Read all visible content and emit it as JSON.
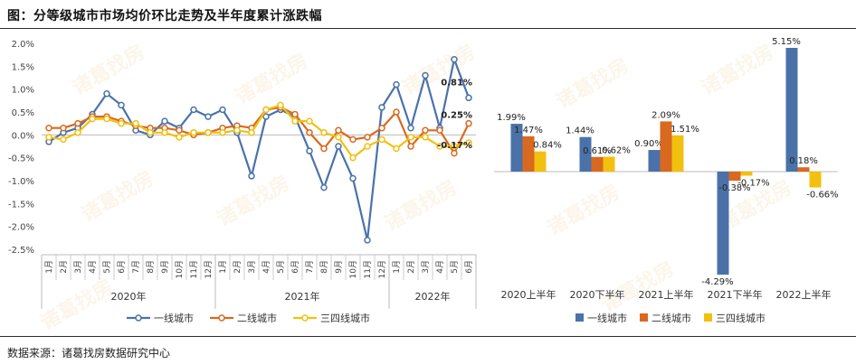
{
  "header": {
    "title": "图：分等级城市市场均价环比走势及半年度累计涨跌幅"
  },
  "footer": {
    "source": "数据来源：诸葛找房数据研究中心"
  },
  "watermark": {
    "text": "诸葛找房"
  },
  "colors": {
    "tier1": "#4a72a9",
    "tier2": "#d9691e",
    "tier34": "#f2c00f",
    "axis": "#999999"
  },
  "chart_data": [
    {
      "type": "line",
      "y_axis": {
        "ticks": [
          "2.0%",
          "1.5%",
          "1.0%",
          "0.5%",
          "0.0%",
          "-0.5%",
          "-1.0%",
          "-1.5%",
          "-2.0%",
          "-2.5%"
        ],
        "ylim": [
          -2.5,
          2.0
        ]
      },
      "x_months": [
        "1月",
        "2月",
        "3月",
        "4月",
        "5月",
        "6月",
        "7月",
        "8月",
        "9月",
        "10月",
        "11月",
        "12月",
        "1月",
        "2月",
        "3月",
        "4月",
        "5月",
        "6月",
        "7月",
        "8月",
        "9月",
        "10月",
        "11月",
        "12月",
        "1月",
        "2月",
        "3月",
        "4月",
        "5月",
        "6月"
      ],
      "year_groups": [
        {
          "label": "2020年",
          "count": 12
        },
        {
          "label": "2021年",
          "count": 12
        },
        {
          "label": "2022年",
          "count": 6
        }
      ],
      "series": [
        {
          "name": "一线城市",
          "color_key": "tier1",
          "values": [
            -0.15,
            0.05,
            0.15,
            0.45,
            0.9,
            0.65,
            0.1,
            0.0,
            0.3,
            0.15,
            0.55,
            0.4,
            0.55,
            0.05,
            -0.9,
            0.4,
            0.55,
            0.4,
            -0.35,
            -1.15,
            -0.25,
            -0.95,
            -2.3,
            0.6,
            1.1,
            0.15,
            1.3,
            0.15,
            1.65,
            0.81
          ]
        },
        {
          "name": "二线城市",
          "color_key": "tier2",
          "values": [
            0.15,
            0.15,
            0.25,
            0.4,
            0.4,
            0.3,
            0.2,
            0.15,
            0.15,
            0.1,
            0.0,
            0.05,
            0.15,
            0.2,
            0.15,
            0.55,
            0.6,
            0.45,
            0.05,
            -0.3,
            0.1,
            -0.1,
            -0.05,
            0.15,
            0.5,
            -0.25,
            0.1,
            0.1,
            -0.4,
            0.25
          ]
        },
        {
          "name": "三四线城市",
          "color_key": "tier34",
          "values": [
            -0.05,
            -0.1,
            0.05,
            0.35,
            0.35,
            0.25,
            0.25,
            0.05,
            0.05,
            -0.05,
            0.05,
            0.05,
            0.05,
            0.1,
            0.05,
            0.55,
            0.65,
            0.3,
            0.3,
            0.05,
            -0.05,
            -0.5,
            -0.25,
            -0.1,
            -0.3,
            -0.05,
            -0.05,
            -0.25,
            -0.25,
            -0.17
          ]
        }
      ],
      "end_labels": [
        {
          "text": "0.81%",
          "series": 0
        },
        {
          "text": "0.25%",
          "series": 1
        },
        {
          "text": "-0.17%",
          "series": 2
        }
      ],
      "legend": [
        "一线城市",
        "二线城市",
        "三四线城市"
      ],
      "legend_position": "bottom"
    },
    {
      "type": "bar",
      "categories": [
        "2020上半年",
        "2020下半年",
        "2021上半年",
        "2021下半年",
        "2022上半年"
      ],
      "series": [
        {
          "name": "一线城市",
          "color_key": "tier1",
          "values": [
            1.99,
            1.44,
            0.9,
            -4.29,
            5.15
          ],
          "labels": [
            "1.99%",
            "1.44%",
            "0.90%",
            "-4.29%",
            "5.15%"
          ]
        },
        {
          "name": "二线城市",
          "color_key": "tier2",
          "values": [
            1.47,
            0.61,
            2.09,
            -0.38,
            0.18
          ],
          "labels": [
            "1.47%",
            "0.61%",
            "2.09%",
            "-0.38%",
            "0.18%"
          ]
        },
        {
          "name": "三四线城市",
          "color_key": "tier34",
          "values": [
            0.84,
            0.62,
            1.51,
            -0.17,
            -0.66
          ],
          "labels": [
            "0.84%",
            "0.62%",
            "1.51%",
            "-0.17%",
            "-0.66%"
          ]
        }
      ],
      "legend": [
        "一线城市",
        "二线城市",
        "三四线城市"
      ],
      "legend_position": "bottom"
    }
  ]
}
